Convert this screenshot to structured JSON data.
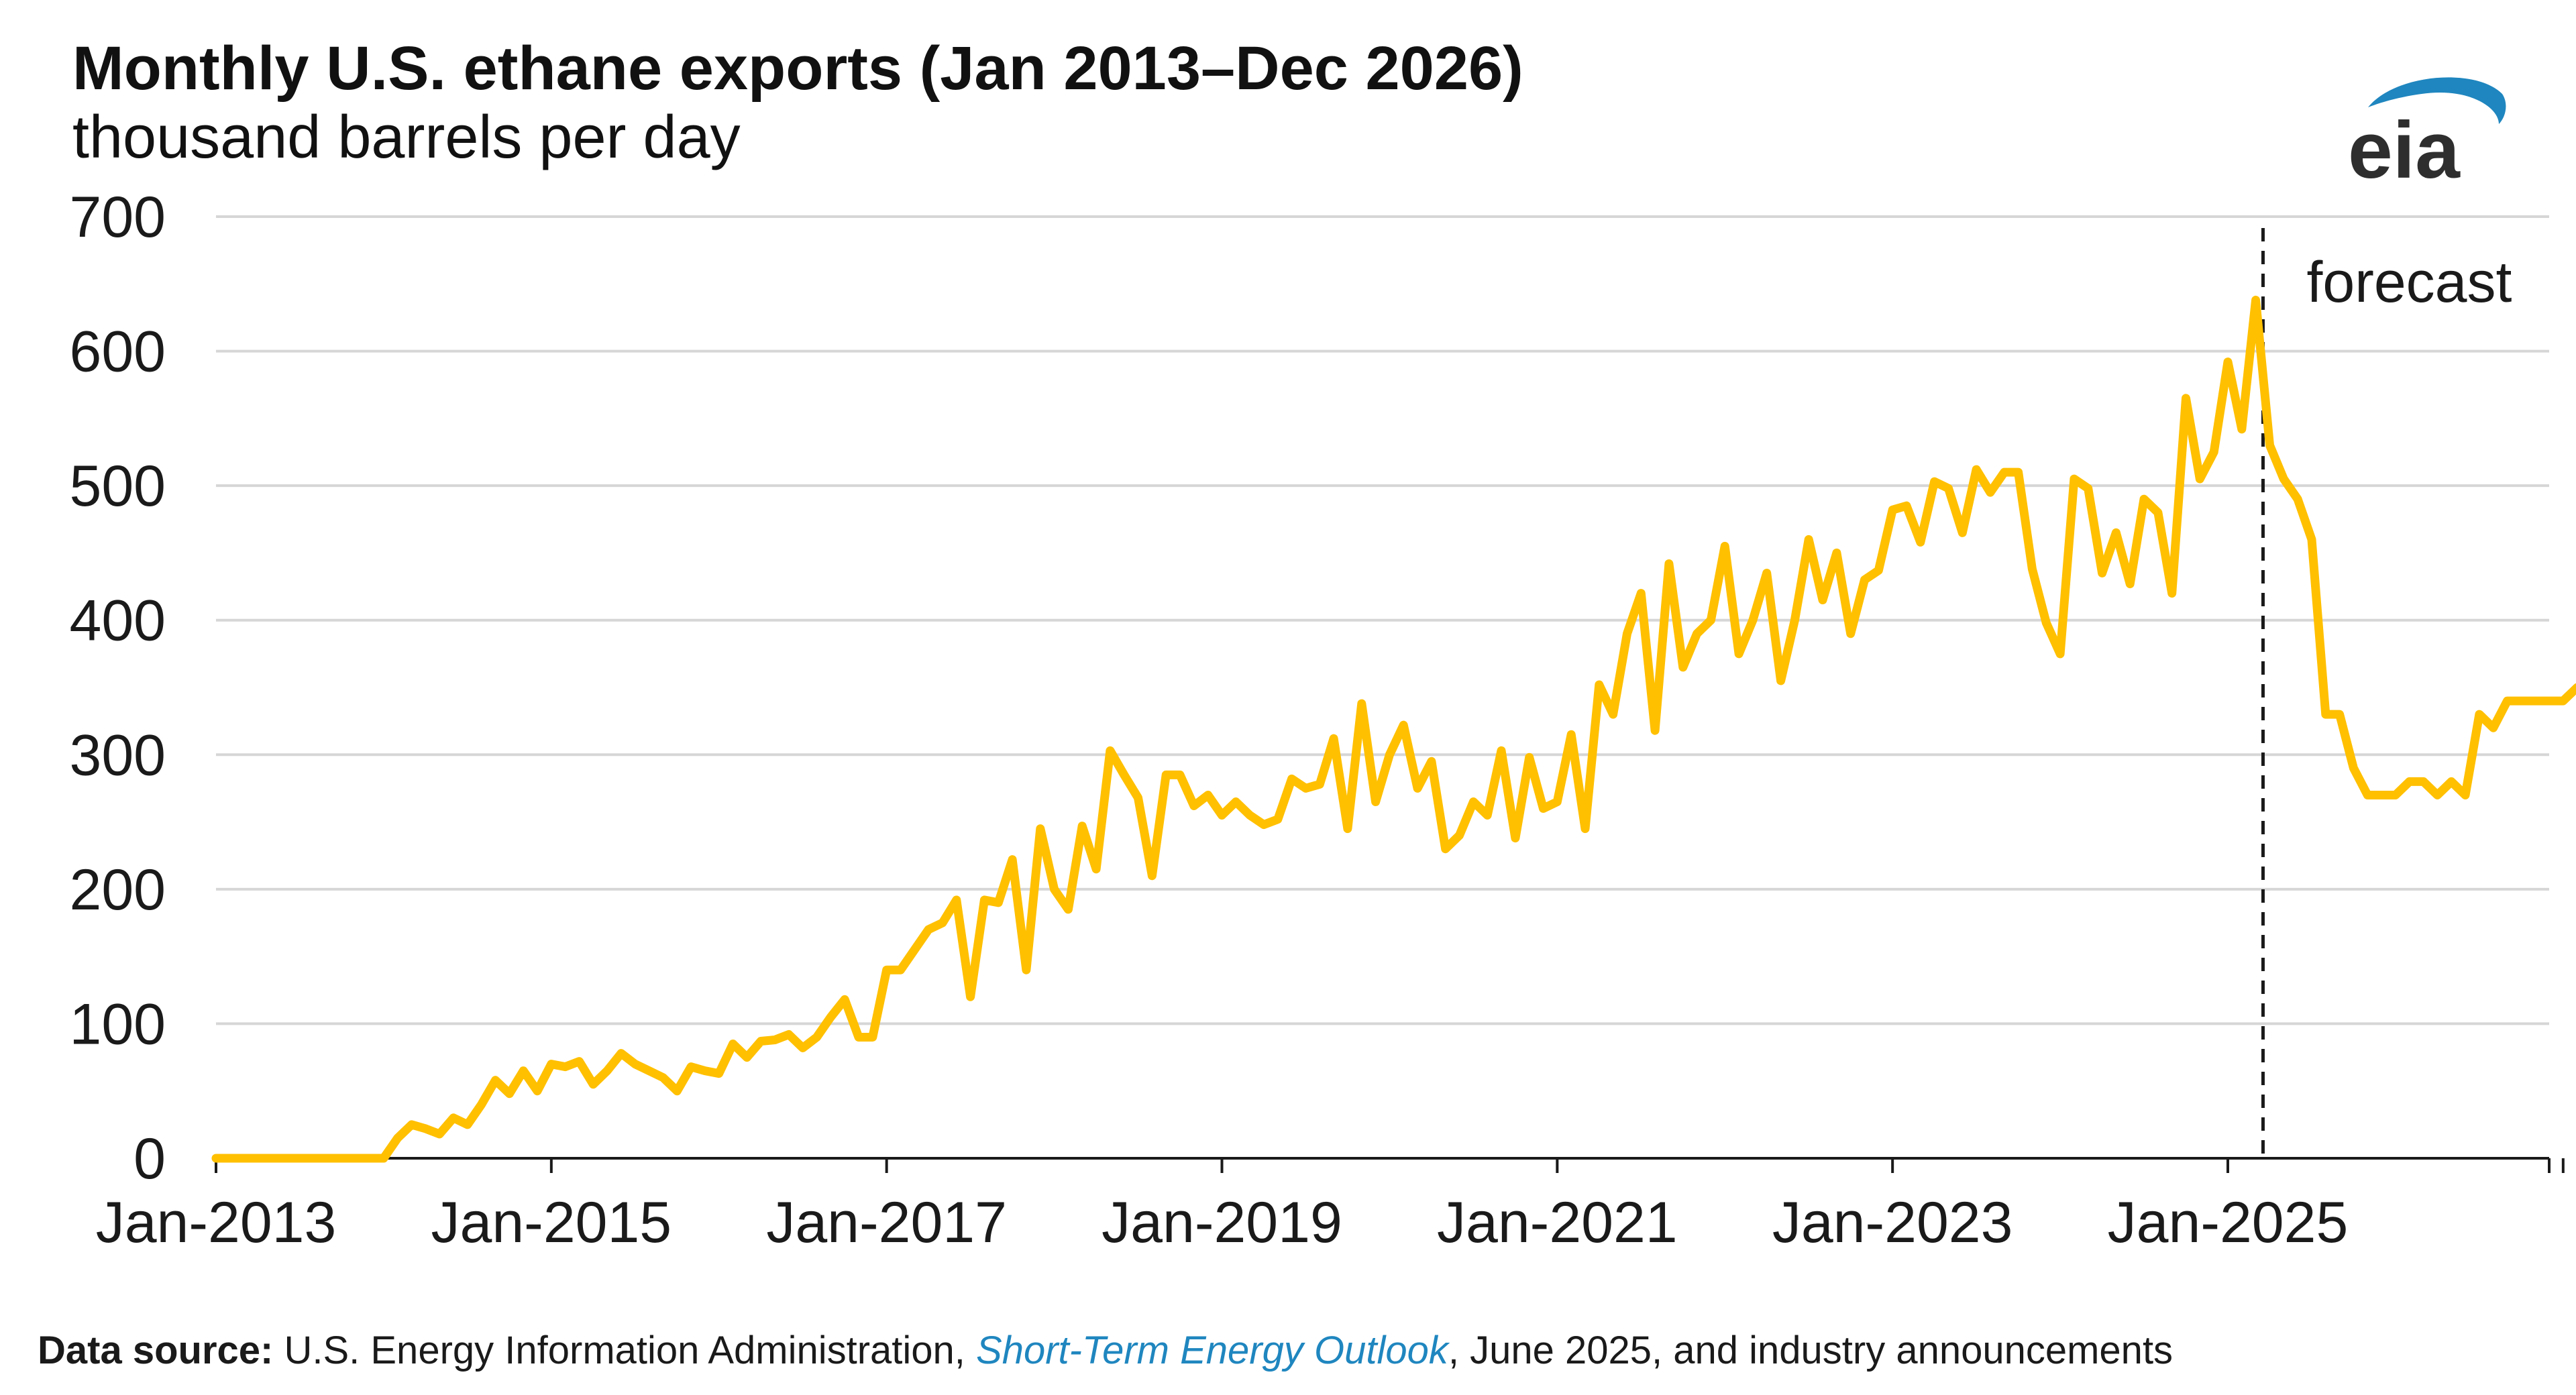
{
  "chart_data": {
    "type": "line",
    "title": "Monthly U.S. ethane exports (Jan 2013–Dec 2026)",
    "subtitle": "thousand barrels per day",
    "ylim": [
      0,
      700
    ],
    "yticks": [
      0,
      100,
      200,
      300,
      400,
      500,
      600,
      700
    ],
    "ytick_labels": [
      "0",
      "100",
      "200",
      "300",
      "400",
      "500",
      "600",
      "700"
    ],
    "xlim": [
      "2013-01",
      "2026-12"
    ],
    "xticks": [
      "2013-01",
      "2015-01",
      "2017-01",
      "2019-01",
      "2021-01",
      "2023-01",
      "2025-01"
    ],
    "xtick_labels": [
      "Jan-2013",
      "Jan-2015",
      "Jan-2017",
      "Jan-2019",
      "Jan-2021",
      "Jan-2023",
      "Jan-2025"
    ],
    "grid": true,
    "line_color": "#FFC000",
    "forecast_start": "2025-04",
    "forecast_label": "forecast",
    "series": [
      {
        "values": [
          0,
          0,
          0,
          0,
          0,
          0,
          0,
          0,
          0,
          0,
          0,
          0,
          0,
          15,
          25,
          22,
          18,
          30,
          25,
          40,
          58,
          48,
          65,
          50,
          70,
          68,
          72,
          55,
          65,
          78,
          70,
          65,
          60,
          50,
          68,
          65,
          63,
          85,
          75,
          87,
          88,
          92,
          82,
          90,
          105,
          118,
          90,
          90,
          140,
          140,
          155,
          170,
          175,
          192,
          120,
          192,
          190,
          222,
          140,
          245,
          200,
          185,
          247,
          215,
          303,
          285,
          268,
          210,
          285,
          285,
          262,
          270,
          255,
          265,
          255,
          248,
          252,
          282,
          275,
          278,
          312,
          245,
          338,
          265,
          300,
          322,
          275,
          295,
          230,
          240,
          265,
          255,
          303,
          238,
          298,
          260,
          265,
          315,
          245,
          352,
          330,
          390,
          420,
          318,
          442,
          365,
          390,
          400,
          455,
          375,
          400,
          435,
          355,
          400,
          460,
          415,
          450,
          390,
          430,
          437,
          482,
          485,
          458,
          503,
          498,
          465,
          512,
          495,
          510,
          510,
          438,
          398,
          375,
          505,
          498,
          435,
          465,
          427,
          490,
          480,
          420,
          565,
          505,
          525,
          592,
          542,
          638,
          530,
          505,
          490,
          460,
          330,
          330,
          290,
          270,
          270,
          270,
          280,
          280,
          270,
          280,
          270,
          330,
          320,
          340,
          340,
          340,
          340,
          340,
          350
        ]
      }
    ]
  },
  "logo": {
    "text": "eia",
    "text_color": "#2E2E2E",
    "swoosh_color": "#1F86BF"
  },
  "footer": {
    "label": "Data source:",
    "text_before": " U.S. Energy Information Administration, ",
    "publication": "Short-Term Energy Outlook",
    "text_after": ", June 2025, and industry announcements"
  }
}
